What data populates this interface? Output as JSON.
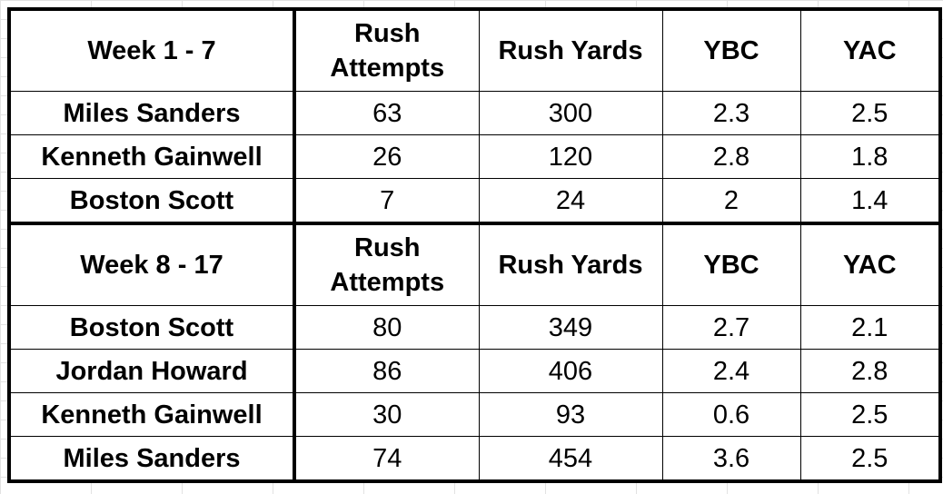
{
  "chart_data": {
    "type": "table",
    "columns": [
      "Rush Attempts",
      "Rush Yards",
      "YBC",
      "YAC"
    ],
    "groups": [
      {
        "label": "Week 1 - 7",
        "rows": [
          {
            "player": "Miles Sanders",
            "values": [
              "63",
              "300",
              "2.3",
              "2.5"
            ]
          },
          {
            "player": "Kenneth Gainwell",
            "values": [
              "26",
              "120",
              "2.8",
              "1.8"
            ]
          },
          {
            "player": "Boston Scott",
            "values": [
              "7",
              "24",
              "2",
              "1.4"
            ]
          }
        ]
      },
      {
        "label": "Week 8 - 17",
        "rows": [
          {
            "player": "Boston Scott",
            "values": [
              "80",
              "349",
              "2.7",
              "2.1"
            ]
          },
          {
            "player": "Jordan Howard",
            "values": [
              "86",
              "406",
              "2.4",
              "2.8"
            ]
          },
          {
            "player": "Kenneth Gainwell",
            "values": [
              "30",
              "93",
              "0.6",
              "2.5"
            ]
          },
          {
            "player": "Miles Sanders",
            "values": [
              "74",
              "454",
              "3.6",
              "2.5"
            ]
          }
        ]
      }
    ]
  }
}
